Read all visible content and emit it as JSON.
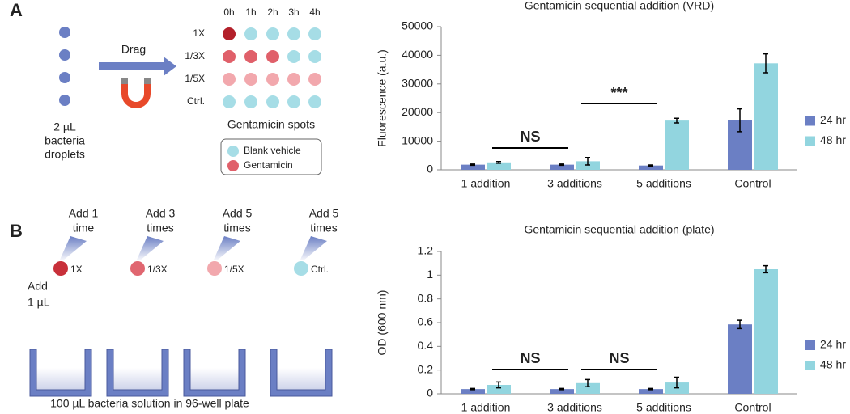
{
  "chart_data": [
    {
      "type": "bar",
      "title": "Gentamicin sequential addition (VRD)",
      "y_label": "Fluorescence (a.u.)",
      "categories": [
        "1 addition",
        "3 additions",
        "5 additions",
        "Control"
      ],
      "series": [
        {
          "name": "24 hr",
          "color": "#6b7fc4",
          "values": [
            1800,
            1800,
            1500,
            17300
          ],
          "errors": [
            200,
            200,
            200,
            4000
          ]
        },
        {
          "name": "48 hr",
          "color": "#92d5df",
          "values": [
            2600,
            3000,
            17200,
            37200
          ],
          "errors": [
            300,
            1300,
            800,
            3300
          ]
        }
      ],
      "ylim": [
        0,
        50000
      ],
      "yticks": [
        0,
        10000,
        20000,
        30000,
        40000,
        50000
      ],
      "legend": "right",
      "annotations": [
        "NS",
        "***"
      ]
    },
    {
      "type": "bar",
      "title": "Gentamicin sequential addition (plate)",
      "y_label": "OD (600 nm)",
      "categories": [
        "1 addition",
        "3 additions",
        "5 additions",
        "Control"
      ],
      "series": [
        {
          "name": "24 hr",
          "color": "#6b7fc4",
          "values": [
            0.04,
            0.04,
            0.04,
            0.585
          ],
          "errors": [
            0.005,
            0.005,
            0.005,
            0.035
          ]
        },
        {
          "name": "48 hr",
          "color": "#92d5df",
          "values": [
            0.075,
            0.09,
            0.095,
            1.05
          ],
          "errors": [
            0.025,
            0.03,
            0.045,
            0.03
          ]
        }
      ],
      "ylim": [
        0,
        1.2
      ],
      "yticks": [
        0,
        0.2,
        0.4,
        0.6,
        0.8,
        1,
        1.2
      ],
      "legend": "right",
      "annotations": [
        "NS",
        "NS"
      ]
    }
  ],
  "panel_a": {
    "letter": "A",
    "droplet_label": [
      "2 µL",
      "bacteria",
      "droplets"
    ],
    "arrow_label": "Drag",
    "times": [
      "0h",
      "1h",
      "2h",
      "3h",
      "4h"
    ],
    "rows": [
      "1X",
      "1/3X",
      "1/5X",
      "Ctrl."
    ],
    "grid_caption": "Gentamicin spots",
    "legend": [
      "Blank vehicle",
      "Gentamicin"
    ]
  },
  "panel_b": {
    "letter": "B",
    "pipettes": [
      [
        "Add 1",
        "time"
      ],
      [
        "Add 3",
        "times"
      ],
      [
        "Add 5",
        "times"
      ],
      [
        "Add 5",
        "times"
      ]
    ],
    "volume": [
      "Add",
      "1 µL"
    ],
    "wells": [
      "1X",
      "1/3X",
      "1/5X",
      "Ctrl."
    ],
    "caption": "100 µL bacteria solution in 96-well plate"
  }
}
